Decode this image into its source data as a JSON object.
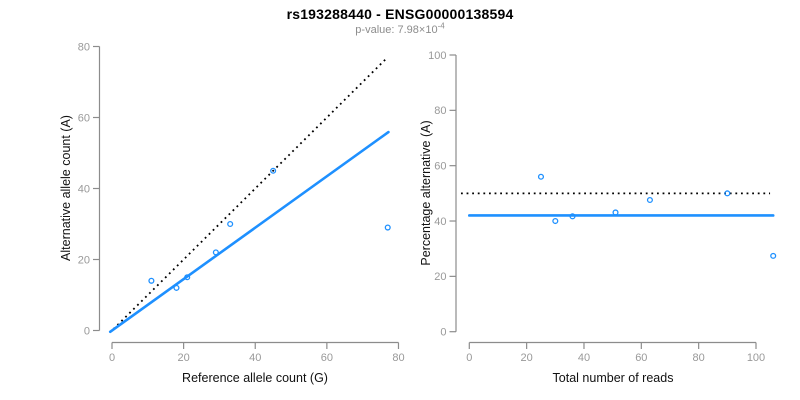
{
  "header": {
    "title": "rs193288440 - ENSG00000138594",
    "subtitle_prefix": "p-value: 7.98×10",
    "subtitle_exponent": "-4"
  },
  "colors": {
    "accent_blue": "#1E90FF",
    "axis_line_gray": "#8c8c8c",
    "tick_label_gray": "#999999",
    "axis_title_black": "#111111",
    "dotted_line_black": "#000000",
    "subtitle_gray": "#8c8c8c"
  },
  "chart_data": [
    {
      "type": "scatter",
      "panel": "allele-counts",
      "xlabel": "Reference allele count (G)",
      "ylabel": "Alternative allele count (A)",
      "xticks": [
        0,
        20,
        40,
        60,
        80
      ],
      "yticks": [
        0,
        20,
        40,
        60,
        80
      ],
      "xlim": [
        0,
        80
      ],
      "ylim": [
        0,
        80
      ],
      "grid": false,
      "legend": "none",
      "points": [
        {
          "x": 11,
          "y": 14
        },
        {
          "x": 18,
          "y": 12
        },
        {
          "x": 21,
          "y": 15
        },
        {
          "x": 29,
          "y": 22
        },
        {
          "x": 33,
          "y": 30
        },
        {
          "x": 45,
          "y": 45
        },
        {
          "x": 77,
          "y": 29
        }
      ],
      "lines": [
        {
          "name": "identity-line",
          "style": "dotted",
          "color_key": "dotted_line_black",
          "slope": 1,
          "intercept": 0,
          "x_from": 0.4,
          "x_to": 76.6
        },
        {
          "name": "fit-line",
          "style": "solid",
          "color_key": "accent_blue",
          "slope": 0.724,
          "intercept": 0,
          "x_from": -0.5,
          "x_to": 77.2
        }
      ]
    },
    {
      "type": "scatter",
      "panel": "percentage-alternative",
      "xlabel": "Total number of reads",
      "ylabel": "Percentage alternative (A)",
      "xticks": [
        0,
        20,
        40,
        60,
        80,
        100
      ],
      "yticks": [
        0,
        20,
        40,
        60,
        80,
        100
      ],
      "xlim": [
        0,
        106
      ],
      "ylim": [
        0,
        100
      ],
      "grid": false,
      "legend": "none",
      "points": [
        {
          "x": 25,
          "y": 56.0
        },
        {
          "x": 30,
          "y": 40.0
        },
        {
          "x": 36,
          "y": 41.7
        },
        {
          "x": 51,
          "y": 43.1
        },
        {
          "x": 63,
          "y": 47.6
        },
        {
          "x": 90,
          "y": 50.0
        },
        {
          "x": 106,
          "y": 27.4
        }
      ],
      "lines": [
        {
          "name": "null-expectation-line",
          "style": "dotted",
          "color_key": "dotted_line_black",
          "slope": 0,
          "intercept": 50,
          "x_from": -2.9,
          "x_to": 104.9
        },
        {
          "name": "fit-line",
          "style": "solid",
          "color_key": "accent_blue",
          "slope": 0,
          "intercept": 42,
          "x_from": 0,
          "x_to": 106
        }
      ]
    }
  ]
}
